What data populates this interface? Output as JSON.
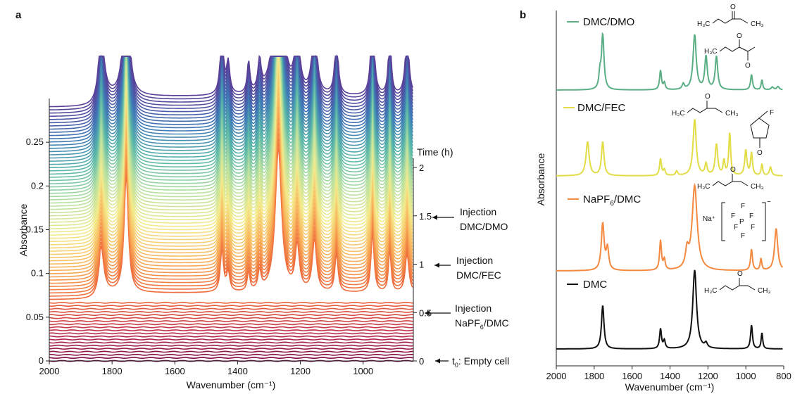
{
  "panel_a": {
    "label": "a",
    "xlabel": "Wavenumber (cm⁻¹)",
    "ylabel": "Absorbance",
    "time_label": "Time (h)",
    "injections": [
      {
        "line1": "Injection",
        "line2": "DMC/DMO"
      },
      {
        "line1": "Injection",
        "line2": "DMC/FEC"
      },
      {
        "line1": "Injection",
        "line2": "NaPF",
        "sub": "6",
        "line2b": "/DMC"
      }
    ],
    "t0_label": "t",
    "t0_sub": "0",
    "t0_text": ": Empty cell"
  },
  "panel_b": {
    "label": "b",
    "xlabel": "Wavenumber (cm⁻¹)",
    "ylabel": "Absorbance",
    "na_label": "Na⁺"
  },
  "chart_data": [
    {
      "type": "line",
      "panel": "a",
      "xlabel": "Wavenumber (cm⁻¹)",
      "ylabel": "Absorbance",
      "xlim": [
        2000,
        840
      ],
      "x_ticks": [
        "2000",
        "1800",
        "1600",
        "1400",
        "1200",
        "1000"
      ],
      "ylim": [
        0,
        0.3
      ],
      "y_ticks": [
        "0",
        "0.05",
        "0.1",
        "0.15",
        "0.2",
        "0.25"
      ],
      "time_axis": {
        "label": "Time (h)",
        "range": [
          0,
          2
        ],
        "ticks": [
          "0",
          "0.5",
          "1",
          "1.5",
          "2"
        ]
      },
      "n_spectra": 81,
      "colormap": [
        "#7b0a45",
        "#c0304a",
        "#ef6a3a",
        "#f9b45c",
        "#f3eb8c",
        "#b7e0a0",
        "#58b6a9",
        "#3e77b6",
        "#5a3f99"
      ],
      "peaks_cm1": [
        1835,
        1755,
        1450,
        1365,
        1270,
        1210,
        1155,
        1085,
        970,
        915,
        860
      ],
      "phases": [
        {
          "from_h": 0,
          "to_h": 0.5,
          "content": "empty cell"
        },
        {
          "from_h": 0.5,
          "to_h": 1,
          "content": "NaPF6/DMC"
        },
        {
          "from_h": 1,
          "to_h": 1.5,
          "content": "DMC/FEC"
        },
        {
          "from_h": 1.5,
          "to_h": 2,
          "content": "DMC/DMO"
        }
      ]
    },
    {
      "type": "line",
      "panel": "b",
      "xlabel": "Wavenumber (cm⁻¹)",
      "ylabel": "Absorbance",
      "xlim": [
        2000,
        800
      ],
      "x_ticks": [
        "2000",
        "1800",
        "1600",
        "1400",
        "1200",
        "1000",
        "800"
      ],
      "series": [
        {
          "name": "DMC/DMO",
          "color": "#5aae84",
          "peaks_cm1": [
            1755,
            1450,
            1270,
            1210,
            1155,
            970,
            915
          ]
        },
        {
          "name": "DMC/FEC",
          "color": "#e2dc45",
          "peaks_cm1": [
            1835,
            1755,
            1450,
            1270,
            1155,
            1085,
            1000,
            970
          ]
        },
        {
          "name": "NaPF",
          "sub": "6",
          "name_tail": "/DMC",
          "color": "#f4893f",
          "peaks_cm1": [
            1755,
            1450,
            1270,
            970,
            920,
            840
          ]
        },
        {
          "name": "DMC",
          "color": "#111111",
          "peaks_cm1": [
            1755,
            1450,
            1270,
            970,
            915
          ]
        }
      ]
    }
  ]
}
